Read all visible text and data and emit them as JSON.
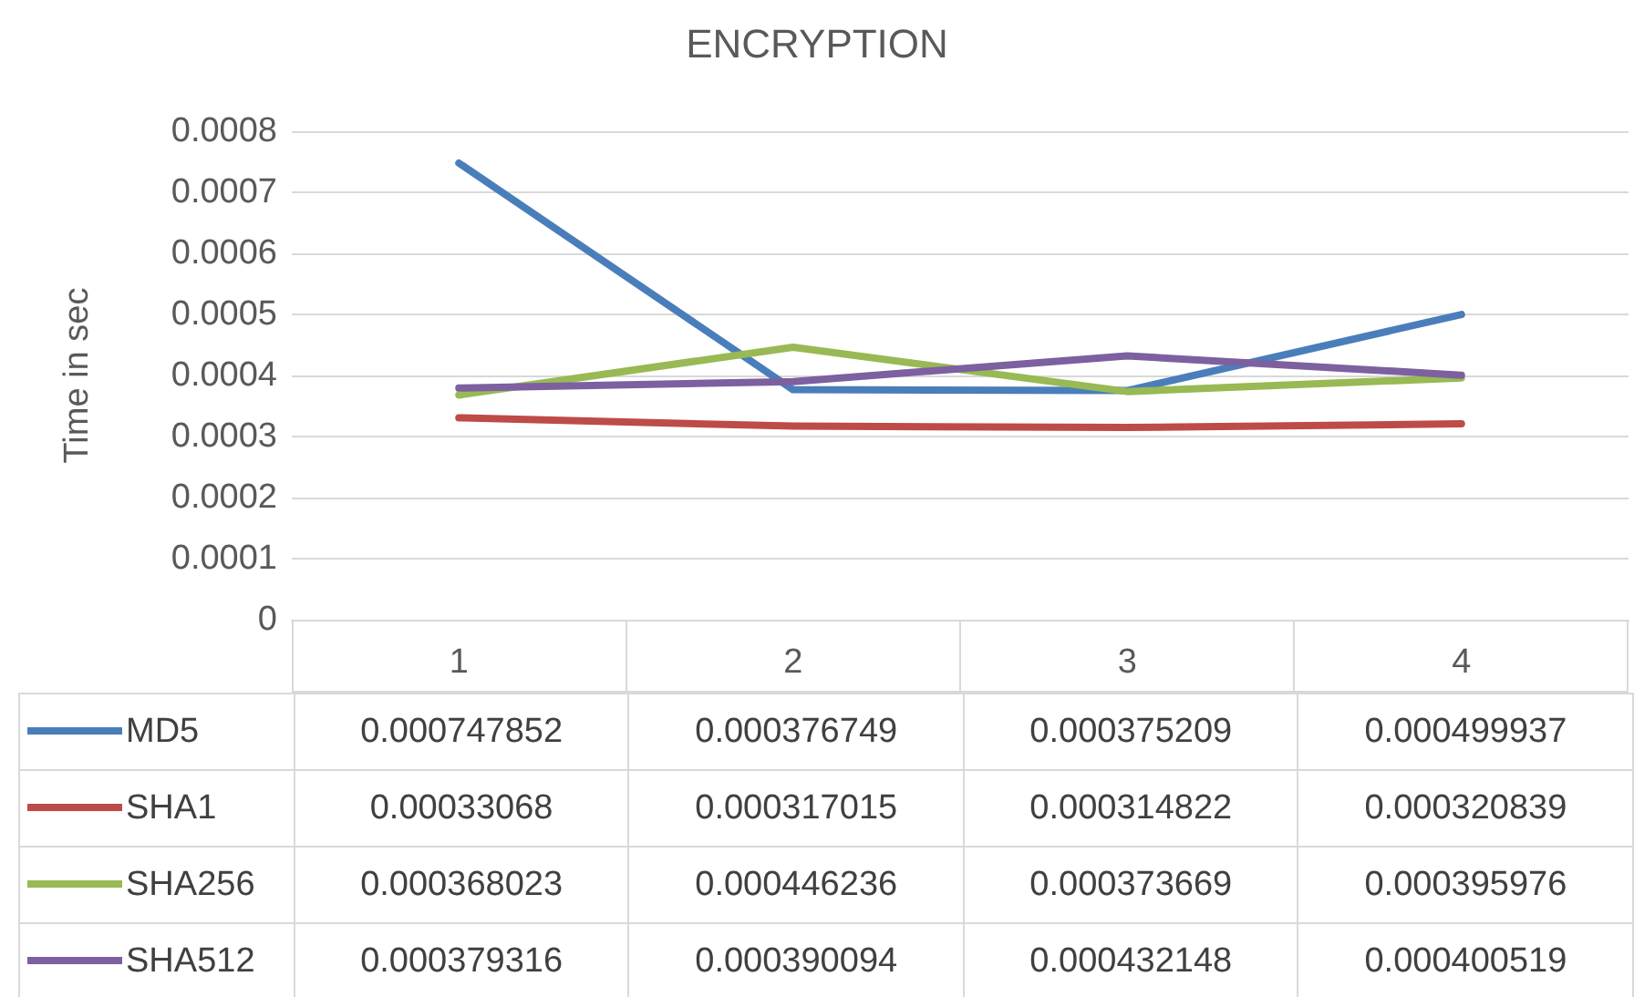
{
  "chart_data": {
    "type": "line",
    "title": "ENCRYPTION",
    "ylabel": "Time in sec",
    "categories": [
      "1",
      "2",
      "3",
      "4"
    ],
    "series": [
      {
        "name": "MD5",
        "color": "#4a7ebb",
        "values": [
          0.000747852,
          0.000376749,
          0.000375209,
          0.000499937
        ]
      },
      {
        "name": "SHA1",
        "color": "#be4b48",
        "values": [
          0.00033068,
          0.000317015,
          0.000314822,
          0.000320839
        ]
      },
      {
        "name": "SHA256",
        "color": "#98b954",
        "values": [
          0.000368023,
          0.000446236,
          0.000373669,
          0.000395976
        ]
      },
      {
        "name": "SHA512",
        "color": "#7d60a0",
        "values": [
          0.000379316,
          0.000390094,
          0.000432148,
          0.000400519
        ]
      }
    ],
    "ylim": [
      0,
      0.0008
    ],
    "yticks": [
      0,
      0.0001,
      0.0002,
      0.0003,
      0.0004,
      0.0005,
      0.0006,
      0.0007,
      0.0008
    ],
    "grid": "y",
    "legend": "bottom",
    "marker": "none",
    "line_style": "solid",
    "data_labels": true
  }
}
